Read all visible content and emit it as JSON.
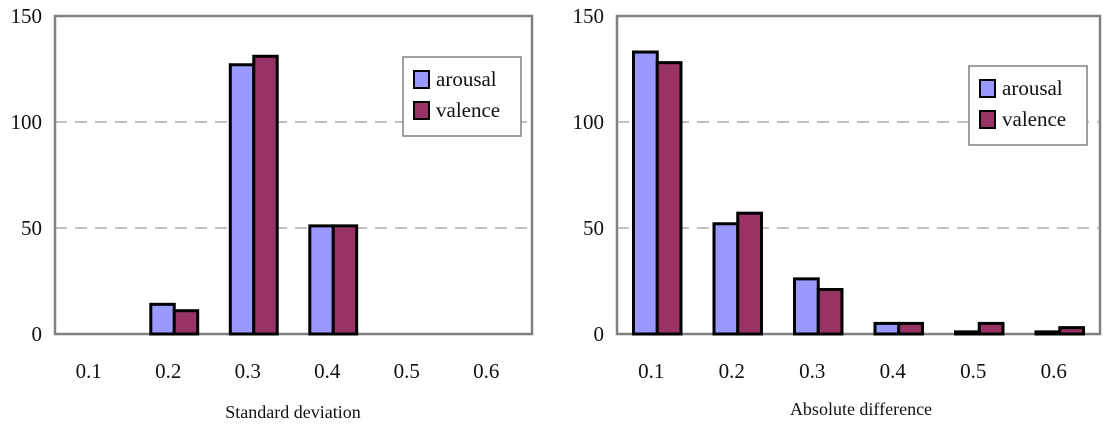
{
  "colors": {
    "arousal": "#9999ff",
    "valence": "#993366",
    "grid": "#9a9a9a",
    "frame": "#808080",
    "bar_stroke": "#000000"
  },
  "chart_data": [
    {
      "type": "bar",
      "categories": [
        "0.1",
        "0.2",
        "0.3",
        "0.4",
        "0.5",
        "0.6"
      ],
      "series": [
        {
          "name": "arousal",
          "values": [
            0,
            14,
            127,
            51,
            0,
            0
          ]
        },
        {
          "name": "valence",
          "values": [
            0,
            11,
            131,
            51,
            0,
            0
          ]
        }
      ],
      "xlabel": "Standard deviation",
      "ylabel": "",
      "ylim": [
        0,
        150
      ],
      "yticks": [
        "0",
        "50",
        "100",
        "150"
      ],
      "grid": "horizontal dashed",
      "legend_position": "top-right"
    },
    {
      "type": "bar",
      "categories": [
        "0.1",
        "0.2",
        "0.3",
        "0.4",
        "0.5",
        "0.6"
      ],
      "series": [
        {
          "name": "arousal",
          "values": [
            133,
            52,
            26,
            5,
            1,
            1
          ]
        },
        {
          "name": "valence",
          "values": [
            128,
            57,
            21,
            5,
            5,
            3
          ]
        }
      ],
      "xlabel": "Absolute difference",
      "ylabel": "",
      "ylim": [
        0,
        150
      ],
      "yticks": [
        "0",
        "50",
        "100",
        "150"
      ],
      "grid": "horizontal dashed",
      "legend_position": "top-right"
    }
  ]
}
